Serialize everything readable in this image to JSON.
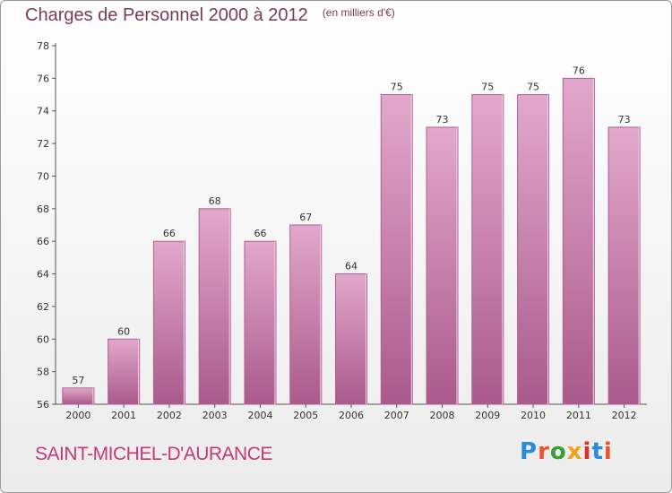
{
  "header": {
    "title": "Charges de Personnel 2000 à 2012",
    "unit": "(en milliers d'€)"
  },
  "footer": {
    "commune": "SAINT-MICHEL-D'AURANCE",
    "brand": "Proxiti"
  },
  "colors": {
    "bar": "#c97aa8",
    "bar_light": "#e2a8cc",
    "bar_dark": "#aa5a8c",
    "title": "#7a3a5a",
    "commune": "#c43a78"
  },
  "chart_data": {
    "type": "bar",
    "title": "Charges de Personnel 2000 à 2012",
    "subtitle": "(en milliers d'€)",
    "categories": [
      "2000",
      "2001",
      "2002",
      "2003",
      "2004",
      "2005",
      "2006",
      "2007",
      "2008",
      "2009",
      "2010",
      "2011",
      "2012"
    ],
    "values": [
      57,
      60,
      66,
      68,
      66,
      67,
      64,
      75,
      73,
      75,
      75,
      76,
      73
    ],
    "ylim": [
      56,
      78
    ],
    "yticks": [
      56,
      58,
      60,
      62,
      64,
      66,
      68,
      70,
      72,
      74,
      76,
      78
    ],
    "grid": false,
    "data_labels": true
  }
}
